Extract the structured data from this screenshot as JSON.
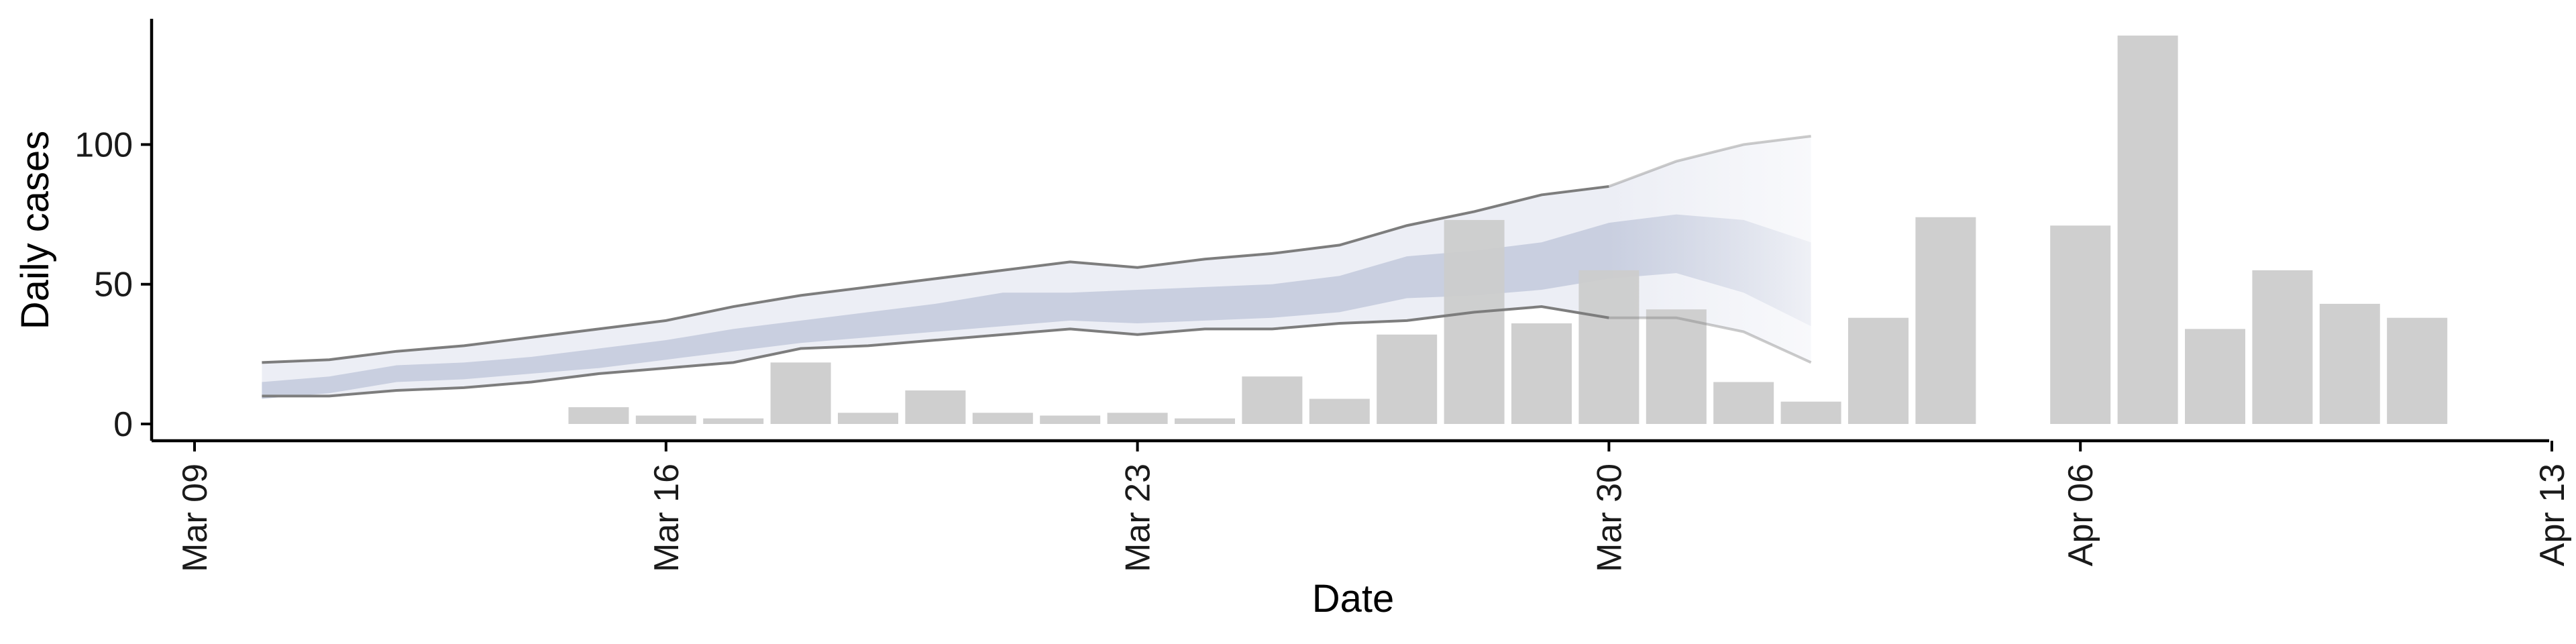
{
  "chart_data": {
    "type": "bar",
    "xlabel": "Date",
    "ylabel": "Daily cases",
    "x_axis": {
      "type": "date",
      "range": [
        "2020-03-08",
        "2020-04-13"
      ],
      "ticks": [
        {
          "date": "2020-03-09",
          "label": "Mar 09"
        },
        {
          "date": "2020-03-16",
          "label": "Mar 16"
        },
        {
          "date": "2020-03-23",
          "label": "Mar 23"
        },
        {
          "date": "2020-03-30",
          "label": "Mar 30"
        },
        {
          "date": "2020-04-06",
          "label": "Apr 06"
        },
        {
          "date": "2020-04-13",
          "label": "Apr 13"
        }
      ]
    },
    "y_axis": {
      "range": [
        -6,
        145
      ],
      "ticks": [
        0,
        50,
        100
      ]
    },
    "grid": false,
    "legend": "none",
    "series": [
      {
        "kind": "bar",
        "color": "#cccccc",
        "points": [
          {
            "date": "2020-03-15",
            "value": 6
          },
          {
            "date": "2020-03-16",
            "value": 3
          },
          {
            "date": "2020-03-17",
            "value": 2
          },
          {
            "date": "2020-03-18",
            "value": 22
          },
          {
            "date": "2020-03-19",
            "value": 4
          },
          {
            "date": "2020-03-20",
            "value": 12
          },
          {
            "date": "2020-03-21",
            "value": 4
          },
          {
            "date": "2020-03-22",
            "value": 3
          },
          {
            "date": "2020-03-23",
            "value": 4
          },
          {
            "date": "2020-03-24",
            "value": 2
          },
          {
            "date": "2020-03-25",
            "value": 17
          },
          {
            "date": "2020-03-26",
            "value": 9
          },
          {
            "date": "2020-03-27",
            "value": 32
          },
          {
            "date": "2020-03-28",
            "value": 73
          },
          {
            "date": "2020-03-29",
            "value": 36
          },
          {
            "date": "2020-03-30",
            "value": 55
          },
          {
            "date": "2020-03-31",
            "value": 41
          },
          {
            "date": "2020-04-01",
            "value": 15
          },
          {
            "date": "2020-04-02",
            "value": 8
          },
          {
            "date": "2020-04-03",
            "value": 38
          },
          {
            "date": "2020-04-04",
            "value": 74
          },
          {
            "date": "2020-04-06",
            "value": 71
          },
          {
            "date": "2020-04-07",
            "value": 139
          },
          {
            "date": "2020-04-08",
            "value": 34
          },
          {
            "date": "2020-04-09",
            "value": 55
          },
          {
            "date": "2020-04-10",
            "value": 43
          },
          {
            "date": "2020-04-11",
            "value": 38
          }
        ]
      },
      {
        "kind": "estimate-band",
        "colors": {
          "outer": "#eceef5",
          "inner": "#c9cfe0",
          "line": "#7d7d7d"
        },
        "dates": [
          "2020-03-10",
          "2020-03-11",
          "2020-03-12",
          "2020-03-13",
          "2020-03-14",
          "2020-03-15",
          "2020-03-16",
          "2020-03-17",
          "2020-03-18",
          "2020-03-19",
          "2020-03-20",
          "2020-03-21",
          "2020-03-22",
          "2020-03-23",
          "2020-03-24",
          "2020-03-25",
          "2020-03-26",
          "2020-03-27",
          "2020-03-28",
          "2020-03-29",
          "2020-03-30",
          "2020-03-31",
          "2020-04-01",
          "2020-04-02"
        ],
        "upper": [
          22,
          23,
          26,
          28,
          31,
          34,
          37,
          42,
          46,
          49,
          52,
          55,
          58,
          56,
          59,
          61,
          64,
          71,
          76,
          82,
          85,
          94,
          100,
          103
        ],
        "lower": [
          10,
          10,
          12,
          13,
          15,
          18,
          20,
          22,
          27,
          28,
          30,
          32,
          34,
          32,
          34,
          34,
          36,
          37,
          40,
          42,
          38,
          38,
          33,
          22
        ],
        "inner_upper": [
          15,
          17,
          21,
          22,
          24,
          27,
          30,
          34,
          37,
          40,
          43,
          47,
          47,
          48,
          49,
          50,
          53,
          60,
          62,
          65,
          72,
          75,
          73,
          65
        ],
        "inner_lower": [
          9,
          11,
          15,
          16,
          18,
          20,
          23,
          26,
          29,
          31,
          33,
          35,
          37,
          36,
          37,
          38,
          40,
          45,
          46,
          48,
          52,
          54,
          47,
          35
        ],
        "projection_from": "2020-03-30"
      }
    ]
  }
}
